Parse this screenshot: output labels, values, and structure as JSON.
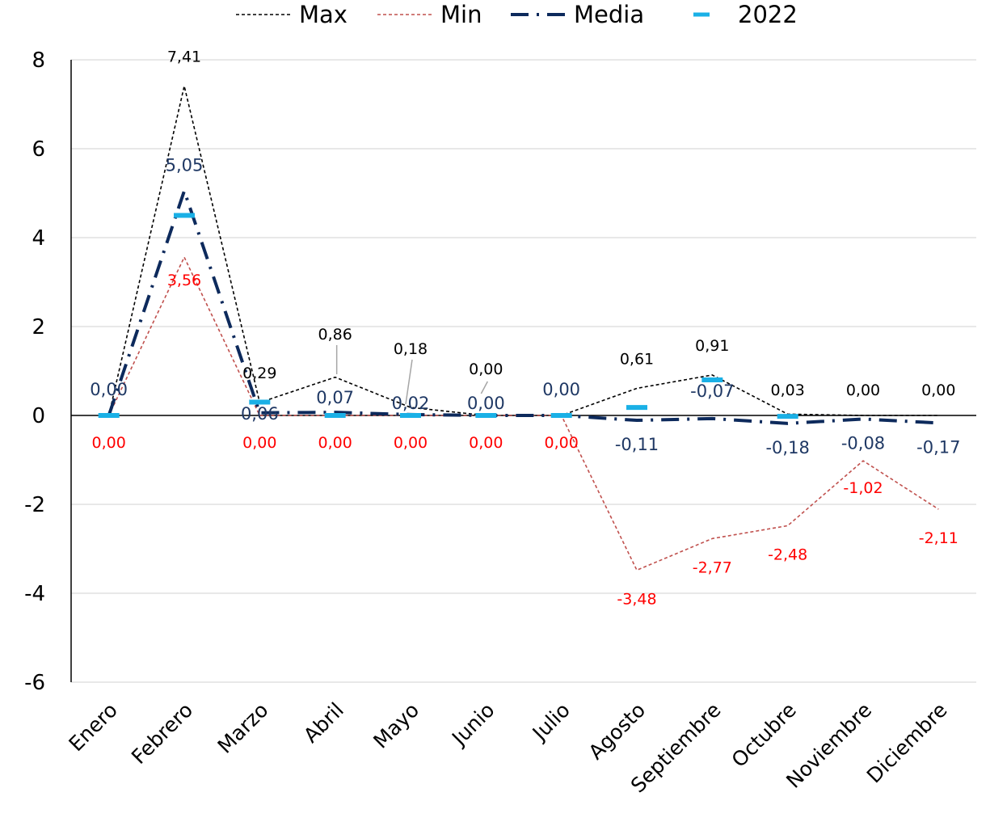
{
  "chart_data": {
    "type": "line",
    "categories": [
      "Enero",
      "Febrero",
      "Marzo",
      "Abril",
      "Mayo",
      "Junio",
      "Julio",
      "Agosto",
      "Septiembre",
      "Octubre",
      "Noviembre",
      "Diciembre"
    ],
    "ylim": [
      -6,
      8
    ],
    "yticks": [
      "-6",
      "-4",
      "-2",
      "0",
      "2",
      "4",
      "6",
      "8"
    ],
    "grid": true,
    "legend_position": "top",
    "series": [
      {
        "name": "Max",
        "style": "dashed-thin",
        "color": "#000000",
        "values": [
          0.0,
          7.41,
          0.29,
          0.86,
          0.18,
          0.0,
          0.0,
          0.61,
          0.91,
          0.03,
          0.0,
          0.0
        ],
        "labels": [
          "",
          "7,41",
          "0,29",
          "0,86",
          "0,18",
          "0,00",
          "",
          "0,61",
          "0,91",
          "0,03",
          "0,00",
          "0,00"
        ]
      },
      {
        "name": "Min",
        "style": "dashed-thin",
        "color": "#C0504D",
        "label_color": "#FF0000",
        "values": [
          0.0,
          3.56,
          0.0,
          0.0,
          0.0,
          0.0,
          0.0,
          -3.48,
          -2.77,
          -2.48,
          -1.02,
          -2.11
        ],
        "labels": [
          "0,00",
          "3,56",
          "0,00",
          "0,00",
          "0,00",
          "0,00",
          "0,00",
          "-3,48",
          "-2,77",
          "-2,48",
          "-1,02",
          "-2,11"
        ]
      },
      {
        "name": "Media",
        "style": "dash-dot-thick",
        "color": "#0D2A5C",
        "values": [
          0.0,
          5.05,
          0.06,
          0.07,
          0.02,
          0.0,
          0.0,
          -0.11,
          -0.07,
          -0.18,
          -0.08,
          -0.17
        ],
        "labels": [
          "0,00",
          "5,05",
          "0,06",
          "0,07",
          "0,02",
          "0,00",
          "0,00",
          "-0,11",
          "-0,07",
          "-0,18",
          "-0,08",
          "-0,17"
        ]
      },
      {
        "name": "2022",
        "style": "marker-dash",
        "color": "#1AB0E6",
        "values": [
          0.0,
          4.5,
          0.3,
          0.0,
          0.0,
          0.0,
          0.0,
          0.18,
          0.8,
          -0.02,
          null,
          null
        ]
      }
    ]
  }
}
